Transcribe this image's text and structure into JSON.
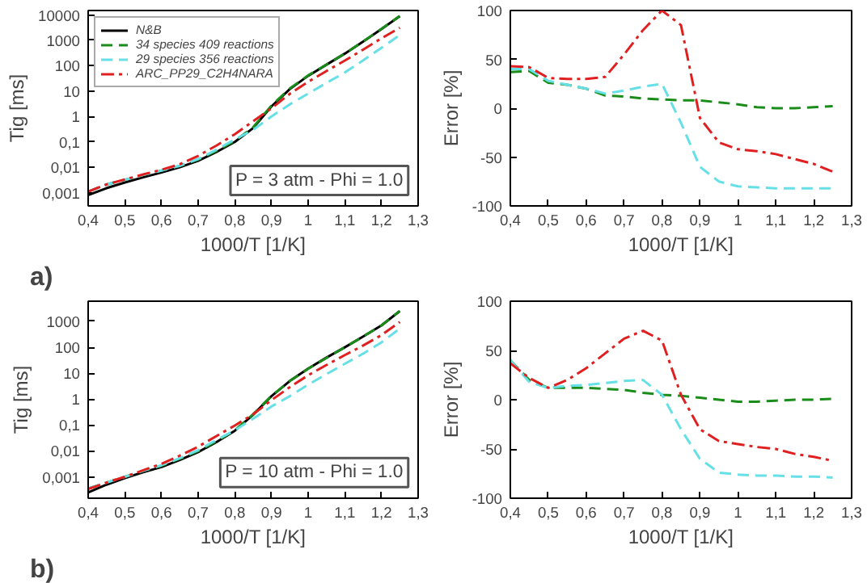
{
  "chart_data": [
    {
      "type": "line",
      "xlabel": "1000/T [1/K]",
      "ylabel": "Tig [ms]",
      "log": "y",
      "legend": "top left",
      "grid": false,
      "x": [
        0.4,
        0.45,
        0.5,
        0.55,
        0.6,
        0.65,
        0.7,
        0.75,
        0.8,
        0.85,
        0.9,
        0.95,
        1.0,
        1.05,
        1.1,
        1.15,
        1.2,
        1.25
      ],
      "xlim": [
        0.4,
        1.3
      ],
      "xticks": [
        {
          "value": 0.4,
          "label": "0,4"
        },
        {
          "value": 0.5,
          "label": "0,5"
        },
        {
          "value": 0.6,
          "label": "0,6"
        },
        {
          "value": 0.7,
          "label": "0,7"
        },
        {
          "value": 0.8,
          "label": "0,8"
        },
        {
          "value": 0.9,
          "label": "0,9"
        },
        1,
        {
          "value": 1.1,
          "label": "1,1"
        },
        {
          "value": 1.2,
          "label": "1,2"
        },
        {
          "value": 1.3,
          "label": "1,3"
        }
      ],
      "ylim": [
        0.0003,
        15000
      ],
      "yticks": [
        {
          "value": 0.001,
          "label": "0,001"
        },
        {
          "value": 0.01,
          "label": "0,01"
        },
        {
          "value": 0.1,
          "label": "0,1"
        },
        1,
        10,
        100,
        1000,
        10000
      ],
      "series": [
        {
          "name": "N&B",
          "color": "#000000",
          "line_style": "solid",
          "values": [
            0.0008,
            0.0015,
            0.0025,
            0.004,
            0.0062,
            0.01,
            0.018,
            0.04,
            0.1,
            0.35,
            2.5,
            12,
            40,
            110,
            300,
            900,
            2800,
            9000
          ]
        },
        {
          "name": "34 species 409 reactions",
          "color": "#1a8c1a",
          "line_style": "dashed",
          "values": [
            0.0011,
            0.0021,
            0.0032,
            0.005,
            0.0074,
            0.0113,
            0.02,
            0.044,
            0.109,
            0.38,
            2.7,
            12.7,
            41.6,
            111,
            300,
            900,
            2830,
            9180
          ]
        },
        {
          "name": "29 species 356 reactions",
          "color": "#66e0e6",
          "line_style": "dashed",
          "values": [
            0.0011,
            0.0021,
            0.0032,
            0.005,
            0.0074,
            0.0115,
            0.021,
            0.049,
            0.125,
            0.3,
            1.0,
            3,
            8,
            21,
            54,
            162,
            504,
            1620
          ]
        },
        {
          "name": "ARC_PP29_C2H4NARA",
          "color": "#e02020",
          "line_style": "dashdot",
          "values": [
            0.0011,
            0.0021,
            0.0033,
            0.0052,
            0.008,
            0.0132,
            0.028,
            0.072,
            0.2,
            0.65,
            2.1,
            7.8,
            23.2,
            62,
            159,
            432,
            1204,
            3150
          ]
        }
      ],
      "annotations": [
        "P = 3 atm - Phi = 1.0",
        "a)"
      ]
    },
    {
      "type": "line",
      "xlabel": "1000/T [1/K]",
      "ylabel": "Error [%]",
      "grid": false,
      "x": [
        0.4,
        0.45,
        0.5,
        0.55,
        0.6,
        0.65,
        0.7,
        0.75,
        0.8,
        0.85,
        0.9,
        0.95,
        1.0,
        1.05,
        1.1,
        1.15,
        1.2,
        1.25
      ],
      "xlim": [
        0.4,
        1.3
      ],
      "xticks": [
        {
          "value": 0.4,
          "label": "0,4"
        },
        {
          "value": 0.5,
          "label": "0,5"
        },
        {
          "value": 0.6,
          "label": "0,6"
        },
        {
          "value": 0.7,
          "label": "0,7"
        },
        {
          "value": 0.8,
          "label": "0,8"
        },
        {
          "value": 0.9,
          "label": "0,9"
        },
        1,
        {
          "value": 1.1,
          "label": "1,1"
        },
        {
          "value": 1.2,
          "label": "1,2"
        },
        {
          "value": 1.3,
          "label": "1,3"
        }
      ],
      "ylim": [
        -100,
        100
      ],
      "yticks": [
        -100,
        -50,
        0,
        50,
        100
      ],
      "series": [
        {
          "color": "#1a8c1a",
          "line_style": "dashed",
          "values": [
            37,
            38,
            26,
            24,
            20,
            13,
            12,
            10,
            9,
            8,
            8,
            6,
            4,
            1,
            0,
            0,
            1,
            2
          ]
        },
        {
          "color": "#66e0e6",
          "line_style": "dashed",
          "values": [
            40,
            40,
            28,
            24,
            20,
            15,
            18,
            22,
            25,
            -15,
            -60,
            -75,
            -80,
            -81,
            -82,
            -82,
            -82,
            -82
          ]
        },
        {
          "color": "#e02020",
          "line_style": "dashdot",
          "values": [
            43,
            42,
            31,
            30,
            30,
            32,
            55,
            80,
            100,
            85,
            -10,
            -35,
            -42,
            -44,
            -47,
            -52,
            -57,
            -65
          ]
        }
      ]
    },
    {
      "type": "line",
      "xlabel": "1000/T [1/K]",
      "ylabel": "Tig [ms]",
      "log": "y",
      "grid": false,
      "x": [
        0.4,
        0.45,
        0.5,
        0.55,
        0.6,
        0.65,
        0.7,
        0.75,
        0.8,
        0.85,
        0.9,
        0.95,
        1.0,
        1.05,
        1.1,
        1.15,
        1.2,
        1.25
      ],
      "xlim": [
        0.4,
        1.3
      ],
      "xticks": [
        {
          "value": 0.4,
          "label": "0,4"
        },
        {
          "value": 0.5,
          "label": "0,5"
        },
        {
          "value": 0.6,
          "label": "0,6"
        },
        {
          "value": 0.7,
          "label": "0,7"
        },
        {
          "value": 0.8,
          "label": "0,8"
        },
        {
          "value": 0.9,
          "label": "0,9"
        },
        1,
        {
          "value": 1.1,
          "label": "1,1"
        },
        {
          "value": 1.2,
          "label": "1,2"
        },
        {
          "value": 1.3,
          "label": "1,3"
        }
      ],
      "ylim": [
        0.00015,
        6000
      ],
      "yticks": [
        {
          "value": 0.001,
          "label": "0,001"
        },
        {
          "value": 0.01,
          "label": "0,01"
        },
        {
          "value": 0.1,
          "label": "0,1"
        },
        1,
        10,
        100,
        1000
      ],
      "series": [
        {
          "color": "#000000",
          "line_style": "solid",
          "values": [
            0.00025,
            0.0005,
            0.0009,
            0.0015,
            0.0024,
            0.0045,
            0.009,
            0.022,
            0.06,
            0.25,
            1.3,
            5,
            15,
            40,
            100,
            260,
            700,
            2500
          ]
        },
        {
          "color": "#1a8c1a",
          "line_style": "dashed",
          "values": [
            0.00035,
            0.0006,
            0.001,
            0.0017,
            0.0027,
            0.005,
            0.0099,
            0.0235,
            0.063,
            0.26,
            1.33,
            5,
            14.7,
            39,
            99,
            260,
            700,
            2525
          ]
        },
        {
          "color": "#66e0e6",
          "line_style": "dashed",
          "values": [
            0.00035,
            0.0006,
            0.001,
            0.0017,
            0.0028,
            0.0053,
            0.0107,
            0.0264,
            0.063,
            0.175,
            0.52,
            1.3,
            3.6,
            9.2,
            23,
            57,
            154,
            525
          ]
        },
        {
          "color": "#e02020",
          "line_style": "dashdot",
          "values": [
            0.00034,
            0.0006,
            0.001,
            0.0018,
            0.0032,
            0.0066,
            0.0146,
            0.0374,
            0.096,
            0.26,
            0.91,
            2.9,
            8.3,
            20.8,
            50,
            117,
            294,
            950
          ]
        }
      ],
      "annotations": [
        "P = 10 atm - Phi = 1.0",
        "b)"
      ]
    },
    {
      "type": "line",
      "xlabel": "1000/T [1/K]",
      "ylabel": "Error [%]",
      "grid": false,
      "x": [
        0.4,
        0.45,
        0.5,
        0.55,
        0.6,
        0.65,
        0.7,
        0.75,
        0.8,
        0.85,
        0.9,
        0.95,
        1.0,
        1.05,
        1.1,
        1.15,
        1.2,
        1.25
      ],
      "xlim": [
        0.4,
        1.3
      ],
      "xticks": [
        {
          "value": 0.4,
          "label": "0,4"
        },
        {
          "value": 0.5,
          "label": "0,5"
        },
        {
          "value": 0.6,
          "label": "0,6"
        },
        {
          "value": 0.7,
          "label": "0,7"
        },
        {
          "value": 0.8,
          "label": "0,8"
        },
        {
          "value": 0.9,
          "label": "0,9"
        },
        1,
        {
          "value": 1.1,
          "label": "1,1"
        },
        {
          "value": 1.2,
          "label": "1,2"
        },
        {
          "value": 1.3,
          "label": "1,3"
        }
      ],
      "ylim": [
        -100,
        100
      ],
      "yticks": [
        -100,
        -50,
        0,
        50,
        100
      ],
      "series": [
        {
          "color": "#1a8c1a",
          "line_style": "dashed",
          "values": [
            40,
            20,
            12,
            12,
            12,
            11,
            10,
            7,
            5,
            4,
            2,
            0,
            -2,
            -2,
            -1,
            0,
            0,
            1
          ]
        },
        {
          "color": "#66e0e6",
          "line_style": "dashed",
          "values": [
            40,
            18,
            12,
            14,
            15,
            17,
            19,
            20,
            5,
            -30,
            -60,
            -74,
            -76,
            -77,
            -77,
            -78,
            -78,
            -79
          ]
        },
        {
          "color": "#e02020",
          "line_style": "dashdot",
          "values": [
            37,
            22,
            12,
            20,
            32,
            47,
            62,
            70,
            60,
            5,
            -30,
            -42,
            -45,
            -48,
            -50,
            -55,
            -58,
            -62
          ]
        }
      ]
    }
  ]
}
